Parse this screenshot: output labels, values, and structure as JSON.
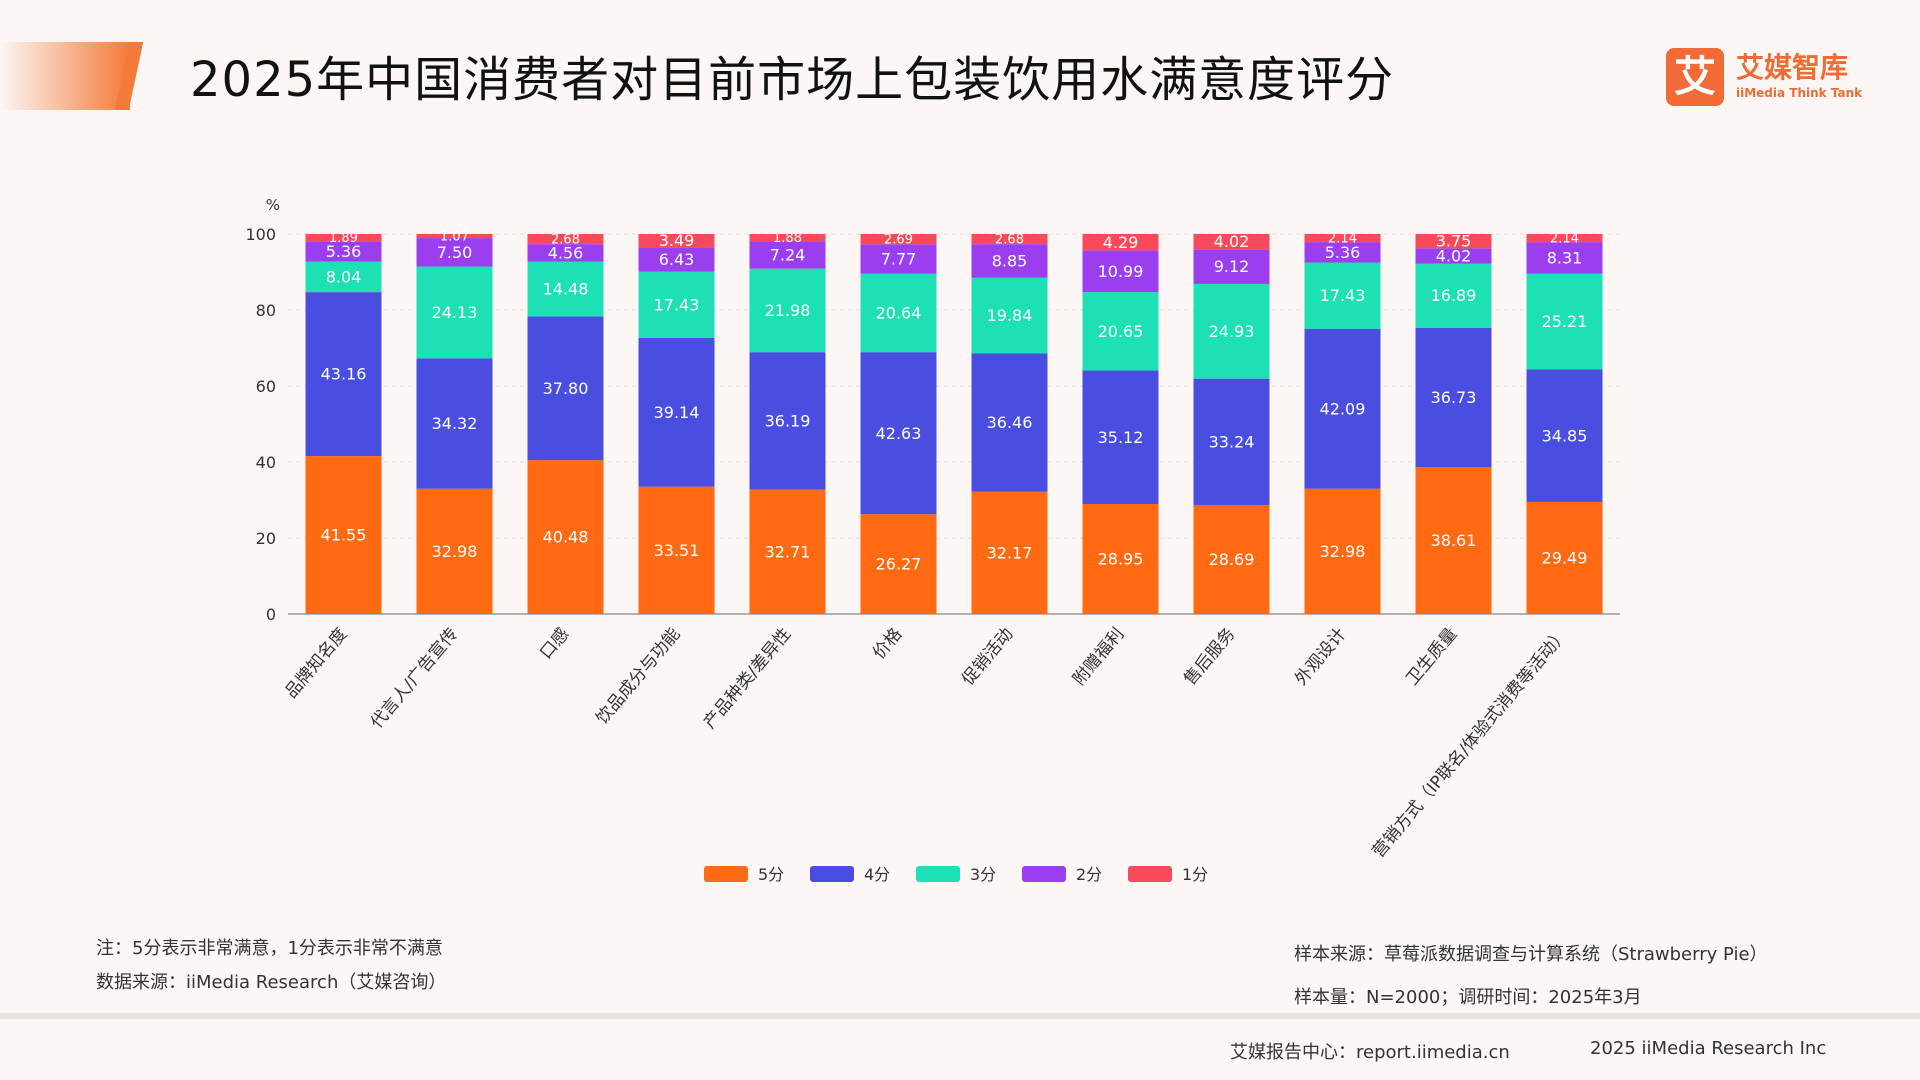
{
  "header": {
    "title": "2025年中国消费者对目前市场上包装饮用水满意度评分",
    "logo_mark": "艾",
    "logo_cn": "艾媒智库",
    "logo_en": "iiMedia Think Tank"
  },
  "chart_data": {
    "type": "bar",
    "stacked": true,
    "ylabel": "%",
    "ylim": [
      0,
      100
    ],
    "yticks": [
      0,
      20,
      40,
      60,
      80,
      100
    ],
    "grid": true,
    "legend_position": "bottom",
    "categories": [
      "品牌知名度",
      "代言人/广告宣传",
      "口感",
      "饮品成分与功能",
      "产品种类/差异性",
      "价格",
      "促销活动",
      "附赠福利",
      "售后服务",
      "外观设计",
      "卫生质量",
      "营销方式（IP联名/体验式消费等活动）"
    ],
    "series": [
      {
        "name": "5分",
        "color": "#ff6a13",
        "values": [
          41.55,
          32.98,
          40.48,
          33.51,
          32.71,
          26.27,
          32.17,
          28.95,
          28.69,
          32.98,
          38.61,
          29.49
        ]
      },
      {
        "name": "4分",
        "color": "#4a4ee0",
        "values": [
          43.16,
          34.32,
          37.8,
          39.14,
          36.19,
          42.63,
          36.46,
          35.12,
          33.24,
          42.09,
          36.73,
          34.85
        ]
      },
      {
        "name": "3分",
        "color": "#1de0b4",
        "values": [
          8.04,
          24.13,
          14.48,
          17.43,
          21.98,
          20.64,
          19.84,
          20.65,
          24.93,
          17.43,
          16.89,
          25.21
        ]
      },
      {
        "name": "2分",
        "color": "#9a3ef0",
        "values": [
          5.36,
          7.5,
          4.56,
          6.43,
          7.24,
          7.77,
          8.85,
          10.99,
          9.12,
          5.36,
          4.02,
          8.31
        ]
      },
      {
        "name": "1分",
        "color": "#f84a5a",
        "values": [
          1.89,
          1.07,
          2.68,
          3.49,
          1.88,
          2.69,
          2.68,
          4.29,
          4.02,
          2.14,
          3.75,
          2.14
        ]
      }
    ]
  },
  "footer": {
    "note": "注：5分表示非常满意，1分表示非常不满意",
    "data_source": "数据来源：iiMedia Research（艾媒咨询）",
    "sample_source": "样本来源：草莓派数据调查与计算系统（Strawberry Pie）",
    "sample_size": "样本量：N=2000；调研时间：2025年3月",
    "report_center": "艾媒报告中心：report.iimedia.cn",
    "copyright": "2025 iiMedia Research Inc"
  }
}
